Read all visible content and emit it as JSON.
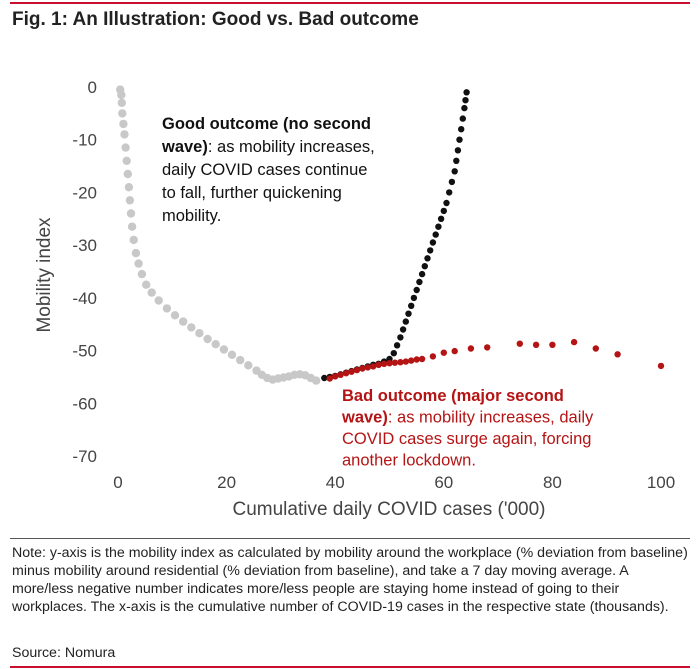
{
  "figure": {
    "title": "Fig. 1: An Illustration: Good vs. Bad outcome",
    "note": "Note: y-axis is the mobility index as calculated by mobility around the workplace (% deviation from baseline) minus mobility around residential (% deviation from baseline), and take a 7 day moving average. A more/less negative number indicates more/less people are staying home instead of going to their workplaces. The x-axis is the cumulative number of COVID-19 cases in the respective state (thousands).",
    "source": "Source: Nomura"
  },
  "chart_data": {
    "type": "scatter",
    "xlabel": "Cumulative daily COVID cases ('000)",
    "ylabel": "Mobility index",
    "xlim": [
      0,
      100
    ],
    "ylim": [
      -70,
      0
    ],
    "xticks": [
      "0",
      "20",
      "40",
      "60",
      "80",
      "100"
    ],
    "yticks": [
      "0",
      "-10",
      "-20",
      "-30",
      "-40",
      "-50",
      "-60",
      "-70"
    ],
    "grid": false,
    "colors": {
      "initial": "#c8c8c8",
      "good": "#111111",
      "bad": "#b51414"
    },
    "series": [
      {
        "key": "initial",
        "points": [
          [
            0.4,
            -0.5
          ],
          [
            0.6,
            -1.5
          ],
          [
            0.7,
            -3
          ],
          [
            0.8,
            -5
          ],
          [
            1,
            -7
          ],
          [
            1.2,
            -9
          ],
          [
            1.4,
            -11.5
          ],
          [
            1.6,
            -14
          ],
          [
            1.8,
            -16.5
          ],
          [
            2,
            -19
          ],
          [
            2.2,
            -21.5
          ],
          [
            2.4,
            -24
          ],
          [
            2.6,
            -26.5
          ],
          [
            2.9,
            -29
          ],
          [
            3.3,
            -31.5
          ],
          [
            3.8,
            -33.5
          ],
          [
            4.4,
            -35.5
          ],
          [
            5.2,
            -37.5
          ],
          [
            6.2,
            -39
          ],
          [
            7.5,
            -40.5
          ],
          [
            9,
            -42
          ],
          [
            10.5,
            -43.3
          ],
          [
            12,
            -44.5
          ],
          [
            13.5,
            -45.6
          ],
          [
            15,
            -46.7
          ],
          [
            16.5,
            -47.8
          ],
          [
            18,
            -48.8
          ],
          [
            19.5,
            -49.8
          ],
          [
            21,
            -50.8
          ],
          [
            22.5,
            -51.8
          ],
          [
            24,
            -52.8
          ],
          [
            25.5,
            -53.8
          ],
          [
            26.5,
            -54.6
          ],
          [
            27.5,
            -55.2
          ],
          [
            28.5,
            -55.5
          ],
          [
            29.5,
            -55.3
          ],
          [
            30.5,
            -55.1
          ],
          [
            31.5,
            -54.9
          ],
          [
            32.5,
            -54.6
          ],
          [
            33.5,
            -54.5
          ],
          [
            34.5,
            -54.7
          ],
          [
            35.5,
            -55.2
          ],
          [
            36.5,
            -55.7
          ]
        ]
      },
      {
        "key": "good",
        "name": "Good outcome",
        "points": [
          [
            38,
            -55.2
          ],
          [
            39,
            -55
          ],
          [
            40,
            -54.8
          ],
          [
            41,
            -54.5
          ],
          [
            42,
            -54.2
          ],
          [
            43,
            -53.9
          ],
          [
            44,
            -53.6
          ],
          [
            45,
            -53.3
          ],
          [
            46,
            -53
          ],
          [
            47,
            -52.7
          ],
          [
            48,
            -52.5
          ],
          [
            49,
            -52.1
          ],
          [
            50,
            -51.6
          ],
          [
            50.8,
            -50.5
          ],
          [
            51.4,
            -49
          ],
          [
            52,
            -47.5
          ],
          [
            52.5,
            -46
          ],
          [
            53,
            -44.5
          ],
          [
            53.5,
            -43
          ],
          [
            54,
            -41.5
          ],
          [
            54.5,
            -40
          ],
          [
            55,
            -38.5
          ],
          [
            55.5,
            -37
          ],
          [
            56,
            -35.5
          ],
          [
            56.5,
            -34
          ],
          [
            57,
            -32.5
          ],
          [
            57.5,
            -31
          ],
          [
            58,
            -29.5
          ],
          [
            58.5,
            -28
          ],
          [
            59,
            -26.5
          ],
          [
            59.5,
            -25
          ],
          [
            60,
            -23.5
          ],
          [
            60.5,
            -22
          ],
          [
            61,
            -20
          ],
          [
            61.5,
            -18
          ],
          [
            62,
            -16
          ],
          [
            62.3,
            -14
          ],
          [
            62.6,
            -12
          ],
          [
            62.9,
            -10
          ],
          [
            63.2,
            -8
          ],
          [
            63.5,
            -6
          ],
          [
            63.8,
            -4
          ],
          [
            64,
            -2.5
          ],
          [
            64.2,
            -1
          ]
        ]
      },
      {
        "key": "bad",
        "name": "Bad outcome",
        "points": [
          [
            39,
            -55.3
          ],
          [
            40,
            -54.9
          ],
          [
            41,
            -54.6
          ],
          [
            42,
            -54.3
          ],
          [
            43,
            -54
          ],
          [
            44,
            -53.7
          ],
          [
            45,
            -53.4
          ],
          [
            46,
            -53.2
          ],
          [
            47,
            -53
          ],
          [
            48,
            -52.7
          ],
          [
            49,
            -52.5
          ],
          [
            50,
            -52.4
          ],
          [
            51,
            -52.3
          ],
          [
            52,
            -52.2
          ],
          [
            53,
            -52.1
          ],
          [
            54,
            -51.9
          ],
          [
            55,
            -51.7
          ],
          [
            56,
            -51.6
          ],
          [
            58,
            -51.1
          ],
          [
            60,
            -50.4
          ],
          [
            62,
            -50.1
          ],
          [
            65,
            -49.6
          ],
          [
            68,
            -49.4
          ],
          [
            74,
            -48.7
          ],
          [
            77,
            -48.9
          ],
          [
            80,
            -48.9
          ],
          [
            84,
            -48.4
          ],
          [
            88,
            -49.6
          ],
          [
            92,
            -50.7
          ],
          [
            100,
            -52.9
          ]
        ]
      }
    ],
    "annotations": {
      "good": {
        "lines": [
          {
            "bold": "Good outcome (no second",
            "text": ""
          },
          {
            "bold": "wave)",
            "text": ": as mobility increases,"
          },
          {
            "bold": "",
            "text": "daily COVID cases continue"
          },
          {
            "bold": "",
            "text": "to fall, further quickening"
          },
          {
            "bold": "",
            "text": "mobility."
          }
        ]
      },
      "bad": {
        "lines": [
          {
            "bold": "Bad outcome (major second",
            "text": ""
          },
          {
            "bold": "wave)",
            "text": ": as mobility increases, daily"
          },
          {
            "bold": "",
            "text": "COVID cases surge again, forcing"
          },
          {
            "bold": "",
            "text": "another lockdown."
          }
        ]
      }
    }
  }
}
